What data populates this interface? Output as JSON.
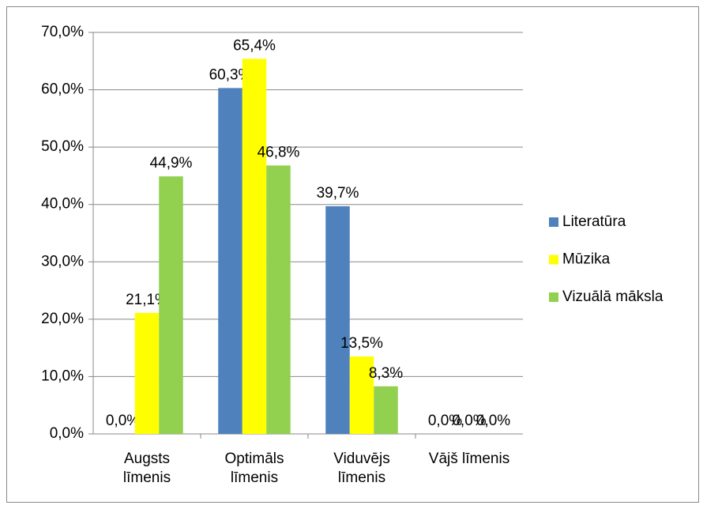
{
  "chart_data": {
    "type": "bar",
    "categories": [
      "Augsts līmenis",
      "Optimāls līmenis",
      "Viduvējs līmenis",
      "Vājš līmenis"
    ],
    "series": [
      {
        "name": "Literatūra",
        "color": "#4f81bd",
        "values": [
          0,
          60.3,
          39.7,
          0
        ],
        "value_labels": [
          "0,0%",
          "60,3%",
          "39,7%",
          "0,0%"
        ]
      },
      {
        "name": "Mūzika",
        "color": "#ffff00",
        "values": [
          21.1,
          65.4,
          13.5,
          0
        ],
        "value_labels": [
          "21,1%",
          "65,4%",
          "13,5%",
          "0,0%"
        ]
      },
      {
        "name": "Vizuālā māksla",
        "color": "#92d050",
        "values": [
          44.9,
          46.8,
          8.3,
          0
        ],
        "value_labels": [
          "44,9%",
          "46,8%",
          "8,3%",
          "0,0%"
        ]
      }
    ],
    "ylim": [
      0,
      70
    ],
    "yticks": [
      {
        "value": 0,
        "label": "0,0%"
      },
      {
        "value": 10,
        "label": "10,0%"
      },
      {
        "value": 20,
        "label": "20,0%"
      },
      {
        "value": 30,
        "label": "30,0%"
      },
      {
        "value": 40,
        "label": "40,0%"
      },
      {
        "value": 50,
        "label": "50,0%"
      },
      {
        "value": 60,
        "label": "60,0%"
      },
      {
        "value": 70,
        "label": "70,0%"
      }
    ],
    "grid": true,
    "legend": "right"
  }
}
